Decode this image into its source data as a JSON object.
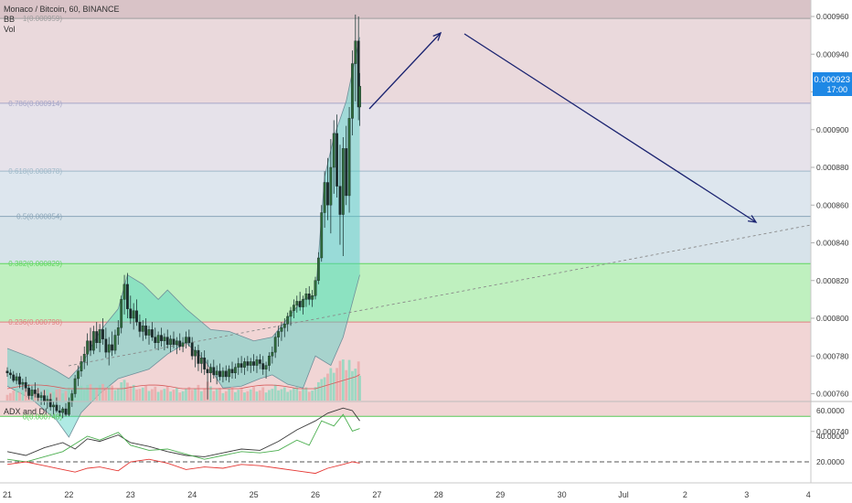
{
  "header": {
    "symbol_line": "Monaco / Bitcoin, 60, BINANCE",
    "indicator_bb": "BB",
    "indicator_vol": "Vol"
  },
  "price_scale": {
    "ticks": [
      "0.000960",
      "0.000940",
      "0.000920",
      "0.000900",
      "0.000880",
      "0.000860",
      "0.000840",
      "0.000820",
      "0.000800",
      "0.000780",
      "0.000760",
      "0.000740"
    ],
    "last_price": "0.000923",
    "countdown": "17:00"
  },
  "fibonacci": [
    {
      "label": "1(0.000959)",
      "value": 0.000959,
      "line": "#9e9e9e"
    },
    {
      "label": "0.786(0.000914)",
      "value": 0.000914,
      "line": "#a6a6c8"
    },
    {
      "label": "0.618(0.000878)",
      "value": 0.000878,
      "line": "#9fb9c9"
    },
    {
      "label": "0.5(0.000854)",
      "value": 0.000854,
      "line": "#8aa5b8"
    },
    {
      "label": "0.382(0.000829)",
      "value": 0.000829,
      "line": "#5fd65f"
    },
    {
      "label": "0.236(0.000798)",
      "value": 0.000798,
      "line": "#e08080"
    },
    {
      "label": "0(0.000748)",
      "value": 0.000748,
      "line": "#58c858"
    }
  ],
  "fib_zone_colors": [
    "#ead9dc",
    "#e6e2ea",
    "#dde6ee",
    "#d7e3ea",
    "#bff0bf",
    "#f1d5d5"
  ],
  "adx": {
    "title": "ADX and DI",
    "ticks": [
      "60.0000",
      "40.0000",
      "20.0000"
    ],
    "threshold": 20
  },
  "time_axis": [
    "21",
    "22",
    "23",
    "24",
    "25",
    "26",
    "27",
    "28",
    "29",
    "30",
    "Jul",
    "2",
    "3",
    "4"
  ],
  "chart_data": {
    "type": "candlestick",
    "title": "Monaco / Bitcoin, 60, BINANCE",
    "ylim": [
      0.000728,
      0.000969
    ],
    "bollinger_upper": [
      [
        21.0,
        0.000784
      ],
      [
        21.4,
        0.000779
      ],
      [
        21.8,
        0.000772
      ],
      [
        22.0,
        0.000768
      ],
      [
        22.2,
        0.000775
      ],
      [
        22.5,
        0.000793
      ],
      [
        22.8,
        0.000805
      ],
      [
        22.95,
        0.000823
      ],
      [
        23.2,
        0.000818
      ],
      [
        23.45,
        0.00081
      ],
      [
        23.6,
        0.000815
      ],
      [
        23.9,
        0.000805
      ],
      [
        24.3,
        0.000794
      ],
      [
        24.6,
        0.000793
      ],
      [
        25.0,
        0.000788
      ],
      [
        25.3,
        0.00079
      ],
      [
        25.55,
        0.0008
      ],
      [
        25.8,
        0.00081
      ],
      [
        26.0,
        0.000812
      ],
      [
        26.15,
        0.000875
      ],
      [
        26.3,
        0.000896
      ],
      [
        26.5,
        0.000915
      ],
      [
        26.72,
        0.000949
      ]
    ],
    "bollinger_lower": [
      [
        21.0,
        0.000764
      ],
      [
        21.4,
        0.000757
      ],
      [
        21.8,
        0.000746
      ],
      [
        22.0,
        0.000737
      ],
      [
        22.2,
        0.00075
      ],
      [
        22.5,
        0.00076
      ],
      [
        22.8,
        0.000768
      ],
      [
        23.0,
        0.00077
      ],
      [
        23.3,
        0.000773
      ],
      [
        23.6,
        0.000781
      ],
      [
        23.9,
        0.000787
      ],
      [
        24.2,
        0.000778
      ],
      [
        24.5,
        0.000763
      ],
      [
        24.8,
        0.000764
      ],
      [
        25.1,
        0.000768
      ],
      [
        25.3,
        0.00077
      ],
      [
        25.55,
        0.000765
      ],
      [
        25.8,
        0.000763
      ],
      [
        26.0,
        0.00078
      ],
      [
        26.25,
        0.000775
      ],
      [
        26.45,
        0.00079
      ],
      [
        26.72,
        0.000823
      ]
    ],
    "candles": [
      [
        21.0,
        0.000772,
        0.000774,
        0.000769,
        0.000771
      ],
      [
        21.05,
        0.000771,
        0.000773,
        0.000768,
        0.00077
      ],
      [
        21.1,
        0.00077,
        0.000772,
        0.000766,
        0.000767
      ],
      [
        21.15,
        0.000767,
        0.000771,
        0.000765,
        0.000769
      ],
      [
        21.2,
        0.000769,
        0.000771,
        0.000763,
        0.000765
      ],
      [
        21.25,
        0.000765,
        0.000768,
        0.000762,
        0.000766
      ],
      [
        21.3,
        0.000766,
        0.000769,
        0.000761,
        0.000763
      ],
      [
        21.35,
        0.000763,
        0.000765,
        0.000757,
        0.000759
      ],
      [
        21.4,
        0.000759,
        0.000764,
        0.000757,
        0.000762
      ],
      [
        21.45,
        0.000762,
        0.000766,
        0.000758,
        0.00076
      ],
      [
        21.5,
        0.00076,
        0.000763,
        0.000756,
        0.000758
      ],
      [
        21.55,
        0.000758,
        0.000761,
        0.000754,
        0.000759
      ],
      [
        21.6,
        0.000759,
        0.000762,
        0.000754,
        0.000756
      ],
      [
        21.65,
        0.000756,
        0.000759,
        0.000752,
        0.000757
      ],
      [
        21.7,
        0.000757,
        0.00076,
        0.000751,
        0.000753
      ],
      [
        21.75,
        0.000753,
        0.000756,
        0.000749,
        0.000754
      ],
      [
        21.8,
        0.000754,
        0.000758,
        0.00075,
        0.000751
      ],
      [
        21.85,
        0.000751,
        0.000754,
        0.000748,
        0.00075
      ],
      [
        21.9,
        0.00075,
        0.000753,
        0.000747,
        0.000752
      ],
      [
        21.95,
        0.000752,
        0.000755,
        0.000748,
        0.000749
      ],
      [
        22.0,
        0.000749,
        0.000758,
        0.000748,
        0.000756
      ],
      [
        22.05,
        0.000756,
        0.000762,
        0.000753,
        0.00076
      ],
      [
        22.1,
        0.00076,
        0.00077,
        0.000758,
        0.000768
      ],
      [
        22.15,
        0.000768,
        0.000775,
        0.000764,
        0.000772
      ],
      [
        22.2,
        0.000772,
        0.00078,
        0.000769,
        0.000777
      ],
      [
        22.25,
        0.000777,
        0.000785,
        0.000773,
        0.000781
      ],
      [
        22.3,
        0.000781,
        0.000792,
        0.000775,
        0.000788
      ],
      [
        22.35,
        0.000788,
        0.000795,
        0.00078,
        0.000783
      ],
      [
        22.4,
        0.000783,
        0.000796,
        0.000781,
        0.000793
      ],
      [
        22.45,
        0.000793,
        0.000798,
        0.000784,
        0.000787
      ],
      [
        22.5,
        0.000787,
        0.000797,
        0.000782,
        0.000794
      ],
      [
        22.55,
        0.000794,
        0.0008,
        0.000786,
        0.000789
      ],
      [
        22.6,
        0.000789,
        0.000795,
        0.000779,
        0.000782
      ],
      [
        22.65,
        0.000782,
        0.00079,
        0.000775,
        0.000786
      ],
      [
        22.7,
        0.000786,
        0.000793,
        0.00078,
        0.000783
      ],
      [
        22.75,
        0.000783,
        0.000794,
        0.000781,
        0.000791
      ],
      [
        22.8,
        0.000791,
        0.000799,
        0.000786,
        0.000795
      ],
      [
        22.85,
        0.000795,
        0.000812,
        0.000792,
        0.00081
      ],
      [
        22.9,
        0.00081,
        0.000823,
        0.000802,
        0.000818
      ],
      [
        22.95,
        0.000818,
        0.000824,
        0.0008,
        0.000805
      ],
      [
        23.0,
        0.000805,
        0.000812,
        0.000797,
        0.0008
      ],
      [
        23.05,
        0.0008,
        0.000808,
        0.000794,
        0.000804
      ],
      [
        23.1,
        0.000804,
        0.00081,
        0.000796,
        0.000798
      ],
      [
        23.15,
        0.000798,
        0.000802,
        0.00079,
        0.000793
      ],
      [
        23.2,
        0.000793,
        0.000799,
        0.000788,
        0.000796
      ],
      [
        23.25,
        0.000796,
        0.0008,
        0.000789,
        0.000791
      ],
      [
        23.3,
        0.000791,
        0.000796,
        0.000786,
        0.000794
      ],
      [
        23.35,
        0.000794,
        0.000798,
        0.000788,
        0.00079
      ],
      [
        23.4,
        0.00079,
        0.000795,
        0.000784,
        0.000787
      ],
      [
        23.45,
        0.000787,
        0.000793,
        0.000783,
        0.000791
      ],
      [
        23.5,
        0.000791,
        0.000795,
        0.000785,
        0.000788
      ],
      [
        23.55,
        0.000788,
        0.000792,
        0.000783,
        0.00079
      ],
      [
        23.6,
        0.00079,
        0.000794,
        0.000784,
        0.000786
      ],
      [
        23.65,
        0.000786,
        0.000791,
        0.000782,
        0.000789
      ],
      [
        23.7,
        0.000789,
        0.000793,
        0.000784,
        0.000786
      ],
      [
        23.75,
        0.000786,
        0.00079,
        0.000781,
        0.000788
      ],
      [
        23.8,
        0.000788,
        0.000792,
        0.000783,
        0.000785
      ],
      [
        23.85,
        0.000785,
        0.00079,
        0.000782,
        0.000787
      ],
      [
        23.9,
        0.000787,
        0.000793,
        0.000784,
        0.00079
      ],
      [
        23.95,
        0.00079,
        0.000794,
        0.000785,
        0.000787
      ],
      [
        24.0,
        0.000787,
        0.00079,
        0.000778,
        0.00078
      ],
      [
        24.05,
        0.00078,
        0.000785,
        0.000774,
        0.000783
      ],
      [
        24.1,
        0.000783,
        0.000786,
        0.000772,
        0.000776
      ],
      [
        24.15,
        0.000776,
        0.000782,
        0.000771,
        0.000779
      ],
      [
        24.2,
        0.000779,
        0.000783,
        0.00077,
        0.000773
      ],
      [
        24.25,
        0.000773,
        0.000778,
        0.000757,
        0.000771
      ],
      [
        24.3,
        0.000771,
        0.000776,
        0.000766,
        0.000774
      ],
      [
        24.35,
        0.000774,
        0.000778,
        0.000768,
        0.00077
      ],
      [
        24.4,
        0.00077,
        0.000775,
        0.000765,
        0.000772
      ],
      [
        24.45,
        0.000772,
        0.000776,
        0.000767,
        0.000769
      ],
      [
        24.5,
        0.000769,
        0.000774,
        0.000766,
        0.000772
      ],
      [
        24.55,
        0.000772,
        0.000775,
        0.000767,
        0.000769
      ],
      [
        24.6,
        0.000769,
        0.000775,
        0.000766,
        0.000773
      ],
      [
        24.65,
        0.000773,
        0.000777,
        0.000768,
        0.000771
      ],
      [
        24.7,
        0.000771,
        0.000776,
        0.000768,
        0.000774
      ],
      [
        24.75,
        0.000774,
        0.000779,
        0.00077,
        0.000776
      ],
      [
        24.8,
        0.000776,
        0.00078,
        0.000771,
        0.000774
      ],
      [
        24.85,
        0.000774,
        0.000779,
        0.00077,
        0.000777
      ],
      [
        24.9,
        0.000777,
        0.00078,
        0.000772,
        0.000775
      ],
      [
        24.95,
        0.000775,
        0.000779,
        0.000771,
        0.000777
      ],
      [
        25.0,
        0.000777,
        0.000781,
        0.000772,
        0.000775
      ],
      [
        25.05,
        0.000775,
        0.00078,
        0.000771,
        0.000778
      ],
      [
        25.1,
        0.000778,
        0.000781,
        0.000773,
        0.000776
      ],
      [
        25.15,
        0.000776,
        0.00078,
        0.00077,
        0.000773
      ],
      [
        25.2,
        0.000773,
        0.000777,
        0.000768,
        0.000775
      ],
      [
        25.25,
        0.000775,
        0.000782,
        0.000772,
        0.00078
      ],
      [
        25.3,
        0.00078,
        0.000785,
        0.000776,
        0.000782
      ],
      [
        25.35,
        0.000782,
        0.000792,
        0.000779,
        0.00079
      ],
      [
        25.4,
        0.00079,
        0.000796,
        0.000785,
        0.000793
      ],
      [
        25.45,
        0.000793,
        0.000798,
        0.000788,
        0.000795
      ],
      [
        25.5,
        0.000795,
        0.0008,
        0.00079,
        0.000797
      ],
      [
        25.55,
        0.000797,
        0.000803,
        0.000793,
        0.000801
      ],
      [
        25.6,
        0.000801,
        0.000806,
        0.000796,
        0.000804
      ],
      [
        25.65,
        0.000804,
        0.00081,
        0.0008,
        0.000807
      ],
      [
        25.7,
        0.000807,
        0.000812,
        0.000803,
        0.000809
      ],
      [
        25.75,
        0.000809,
        0.000814,
        0.000804,
        0.000806
      ],
      [
        25.8,
        0.000806,
        0.000812,
        0.000802,
        0.00081
      ],
      [
        25.85,
        0.00081,
        0.000816,
        0.000806,
        0.000813
      ],
      [
        25.9,
        0.000813,
        0.000817,
        0.000807,
        0.00081
      ],
      [
        25.95,
        0.00081,
        0.000815,
        0.000806,
        0.000812
      ],
      [
        26.0,
        0.000812,
        0.000822,
        0.00081,
        0.00082
      ],
      [
        26.05,
        0.00082,
        0.000835,
        0.000818,
        0.000832
      ],
      [
        26.1,
        0.000832,
        0.00086,
        0.00083,
        0.000856
      ],
      [
        26.15,
        0.000856,
        0.000878,
        0.000848,
        0.000872
      ],
      [
        26.2,
        0.000872,
        0.000885,
        0.000852,
        0.00086
      ],
      [
        26.25,
        0.00086,
        0.000895,
        0.000845,
        0.00088
      ],
      [
        26.3,
        0.00088,
        0.000905,
        0.000866,
        0.000898
      ],
      [
        26.35,
        0.000898,
        0.000908,
        0.000864,
        0.00087
      ],
      [
        26.4,
        0.00087,
        0.000892,
        0.000839,
        0.000855
      ],
      [
        26.45,
        0.000855,
        0.000896,
        0.000833,
        0.00089
      ],
      [
        26.5,
        0.00089,
        0.000902,
        0.00086,
        0.000865
      ],
      [
        26.55,
        0.000865,
        0.000912,
        0.000856,
        0.000906
      ],
      [
        26.6,
        0.000906,
        0.000942,
        0.000897,
        0.000935
      ],
      [
        26.65,
        0.000935,
        0.000961,
        0.000915,
        0.000947
      ],
      [
        26.7,
        0.000947,
        0.00096,
        0.000905,
        0.000912
      ],
      [
        26.72,
        0.000912,
        0.00093,
        0.000902,
        0.000923
      ]
    ]
  }
}
